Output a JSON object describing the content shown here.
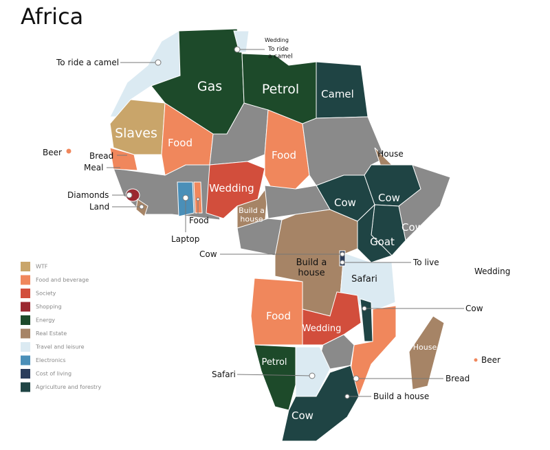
{
  "title": "Africa",
  "legend": [
    {
      "label": "WTF",
      "color": "#c9a56a"
    },
    {
      "label": "Food and beverage",
      "color": "#f0875c"
    },
    {
      "label": "Society",
      "color": "#d24e3c"
    },
    {
      "label": "Shopping",
      "color": "#9b2830"
    },
    {
      "label": "Energy",
      "color": "#1d4a2a"
    },
    {
      "label": "Real Estate",
      "color": "#a68466"
    },
    {
      "label": "Travel and leisure",
      "color": "#dbeaf2"
    },
    {
      "label": "Electronics",
      "color": "#4a8fb8"
    },
    {
      "label": "Cost of living",
      "color": "#2a3d5c"
    },
    {
      "label": "Agriculture and forestry",
      "color": "#1f4444"
    }
  ],
  "labels": [
    "Gas",
    "Petrol",
    "Camel",
    "Slaves",
    "Food",
    "Food",
    "House",
    "Wedding",
    "Cow",
    "Cow",
    "Cow",
    "Goat",
    "Build a house",
    "Build a house",
    "Safari",
    "Food",
    "Wedding",
    "House",
    "Petrol",
    "Safari",
    "Cow",
    "To ride a camel",
    "Wedding",
    "To ride a camel",
    "Beer",
    "Bread",
    "Meal",
    "Diamonds",
    "Land",
    "Food",
    "Laptop",
    "Cow",
    "To live",
    "Wedding",
    "Cow",
    "Beer",
    "Safari",
    "Bread",
    "Build a house"
  ]
}
